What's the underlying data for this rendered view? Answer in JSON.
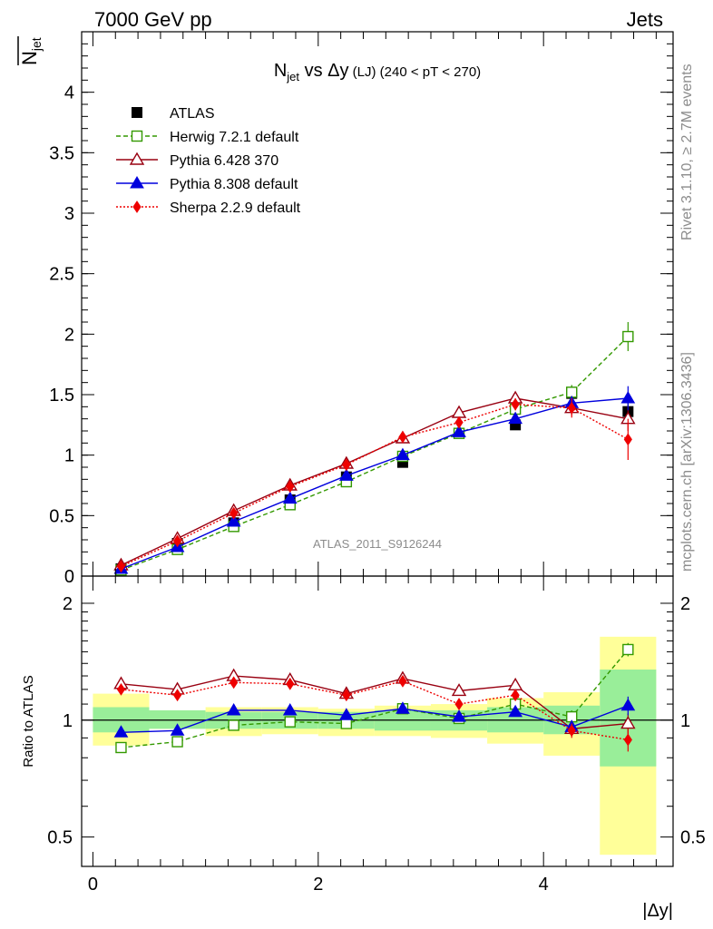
{
  "header": {
    "left": "7000 GeV pp",
    "right": "Jets"
  },
  "side_labels": {
    "rivet": "Rivet 3.1.10, ≥ 2.7M events",
    "mcplots": "mcplots.cern.ch [arXiv:1306.3436]"
  },
  "watermark": "ATLAS_2011_S9126244",
  "chart_data": [
    {
      "type": "scatter",
      "panel": "main",
      "title": {
        "main": "N",
        "sub": "jet",
        "rest": " vs Δy",
        "small": " (LJ)",
        "tail": " (240 < pT < 270)"
      },
      "ylabel": {
        "main": "N",
        "sub": "jet"
      },
      "ylim": [
        0,
        4.5
      ],
      "yticks": [
        0,
        0.5,
        1,
        1.5,
        2,
        2.5,
        3,
        3.5,
        4
      ],
      "ytick_labels": [
        "0",
        "0.5",
        "1",
        "1.5",
        "2",
        "2.5",
        "3",
        "3.5",
        "4"
      ],
      "x": [
        0.25,
        0.75,
        1.25,
        1.75,
        2.25,
        2.75,
        3.25,
        3.75,
        4.25,
        4.75
      ],
      "legend_position": "top-left",
      "series": [
        {
          "name": "ATLAS",
          "color": "#000000",
          "marker": "square-filled",
          "line": "none",
          "values": [
            0.06,
            0.27,
            0.44,
            0.63,
            0.82,
            0.94,
            1.18,
            1.25,
            1.51,
            1.36
          ],
          "errors": [
            0.01,
            0.01,
            0.01,
            0.02,
            0.02,
            0.02,
            0.03,
            0.04,
            0.06,
            0.08
          ]
        },
        {
          "name": "Herwig 7.2.1 default",
          "color": "#339900",
          "marker": "square-open",
          "line": "dashed",
          "values": [
            0.05,
            0.22,
            0.41,
            0.59,
            0.78,
            0.99,
            1.18,
            1.38,
            1.52,
            1.98
          ],
          "errors": [
            0.005,
            0.01,
            0.01,
            0.01,
            0.01,
            0.02,
            0.02,
            0.03,
            0.06,
            0.12
          ]
        },
        {
          "name": "Pythia 6.428 370",
          "color": "#990011",
          "marker": "triangle-open",
          "line": "solid",
          "values": [
            0.09,
            0.31,
            0.54,
            0.75,
            0.93,
            1.14,
            1.35,
            1.47,
            1.39,
            1.3
          ],
          "errors": [
            0.005,
            0.01,
            0.01,
            0.01,
            0.01,
            0.02,
            0.02,
            0.03,
            0.06,
            0.1
          ]
        },
        {
          "name": "Pythia 8.308 default",
          "color": "#0000dd",
          "marker": "triangle-filled",
          "line": "solid",
          "values": [
            0.06,
            0.24,
            0.45,
            0.64,
            0.83,
            1.0,
            1.19,
            1.3,
            1.43,
            1.47
          ],
          "errors": [
            0.005,
            0.01,
            0.01,
            0.01,
            0.01,
            0.02,
            0.02,
            0.03,
            0.06,
            0.1
          ]
        },
        {
          "name": "Sherpa 2.2.9 default",
          "color": "#ee0000",
          "marker": "diamond-filled",
          "line": "dotted",
          "values": [
            0.08,
            0.29,
            0.52,
            0.74,
            0.92,
            1.15,
            1.27,
            1.42,
            1.39,
            1.13
          ],
          "errors": [
            0.005,
            0.01,
            0.01,
            0.01,
            0.01,
            0.02,
            0.02,
            0.05,
            0.08,
            0.17
          ]
        }
      ]
    },
    {
      "type": "scatter",
      "panel": "ratio",
      "ylabel": "Ratio to ATLAS",
      "xlabel": "|Δy|",
      "xlim": [
        -0.1,
        5.15
      ],
      "xticks": [
        0,
        2,
        4
      ],
      "xtick_labels": [
        "0",
        "2",
        "4"
      ],
      "ylim": [
        0.42,
        2.35
      ],
      "yscale": "log",
      "yticks": [
        0.5,
        1,
        2
      ],
      "ytick_labels": [
        "0.5",
        "1",
        "2"
      ],
      "x": [
        0.25,
        0.75,
        1.25,
        1.75,
        2.25,
        2.75,
        3.25,
        3.75,
        4.25,
        4.75
      ],
      "bins": [
        [
          0,
          0.5
        ],
        [
          0.5,
          1
        ],
        [
          1,
          1.5
        ],
        [
          1.5,
          2
        ],
        [
          2,
          2.5
        ],
        [
          2.5,
          3
        ],
        [
          3,
          3.5
        ],
        [
          3.5,
          4
        ],
        [
          4,
          4.5
        ],
        [
          4.5,
          5
        ]
      ],
      "band_stat": [
        [
          0.93,
          1.08
        ],
        [
          0.95,
          1.06
        ],
        [
          0.95,
          1.05
        ],
        [
          0.95,
          1.05
        ],
        [
          0.95,
          1.05
        ],
        [
          0.94,
          1.06
        ],
        [
          0.94,
          1.06
        ],
        [
          0.93,
          1.08
        ],
        [
          0.92,
          1.09
        ],
        [
          0.76,
          1.35
        ]
      ],
      "band_total": [
        [
          0.86,
          1.17
        ],
        [
          0.95,
          1.06
        ],
        [
          0.91,
          1.08
        ],
        [
          0.92,
          1.08
        ],
        [
          0.91,
          1.07
        ],
        [
          0.91,
          1.09
        ],
        [
          0.9,
          1.1
        ],
        [
          0.87,
          1.14
        ],
        [
          0.81,
          1.18
        ],
        [
          0.45,
          1.64
        ]
      ],
      "band_colors": {
        "stat": "#99ee99",
        "total": "#ffff99"
      },
      "reference_line": 1,
      "series": [
        {
          "name": "Herwig 7.2.1 default",
          "color": "#339900",
          "marker": "square-open",
          "line": "dashed",
          "values": [
            0.85,
            0.88,
            0.97,
            0.99,
            0.98,
            1.07,
            1.01,
            1.1,
            1.02,
            1.52
          ],
          "errors": [
            0.01,
            0.01,
            0.01,
            0.01,
            0.01,
            0.01,
            0.01,
            0.02,
            0.04,
            0.06
          ]
        },
        {
          "name": "Pythia 6.428 370",
          "color": "#990011",
          "marker": "triangle-open",
          "line": "solid",
          "values": [
            1.24,
            1.2,
            1.3,
            1.27,
            1.17,
            1.28,
            1.19,
            1.23,
            0.95,
            0.98
          ],
          "errors": [
            0.01,
            0.01,
            0.01,
            0.01,
            0.01,
            0.01,
            0.01,
            0.02,
            0.04,
            0.06
          ]
        },
        {
          "name": "Pythia 8.308 default",
          "color": "#0000dd",
          "marker": "triangle-filled",
          "line": "solid",
          "values": [
            0.93,
            0.94,
            1.06,
            1.06,
            1.03,
            1.07,
            1.02,
            1.05,
            0.96,
            1.09
          ],
          "errors": [
            0.01,
            0.01,
            0.01,
            0.01,
            0.01,
            0.01,
            0.01,
            0.02,
            0.04,
            0.06
          ]
        },
        {
          "name": "Sherpa 2.2.9 default",
          "color": "#ee0000",
          "marker": "diamond-filled",
          "line": "dotted",
          "values": [
            1.2,
            1.16,
            1.25,
            1.24,
            1.16,
            1.26,
            1.1,
            1.16,
            0.94,
            0.89
          ],
          "errors": [
            0.01,
            0.01,
            0.01,
            0.01,
            0.01,
            0.01,
            0.01,
            0.02,
            0.04,
            0.06
          ]
        }
      ]
    }
  ]
}
